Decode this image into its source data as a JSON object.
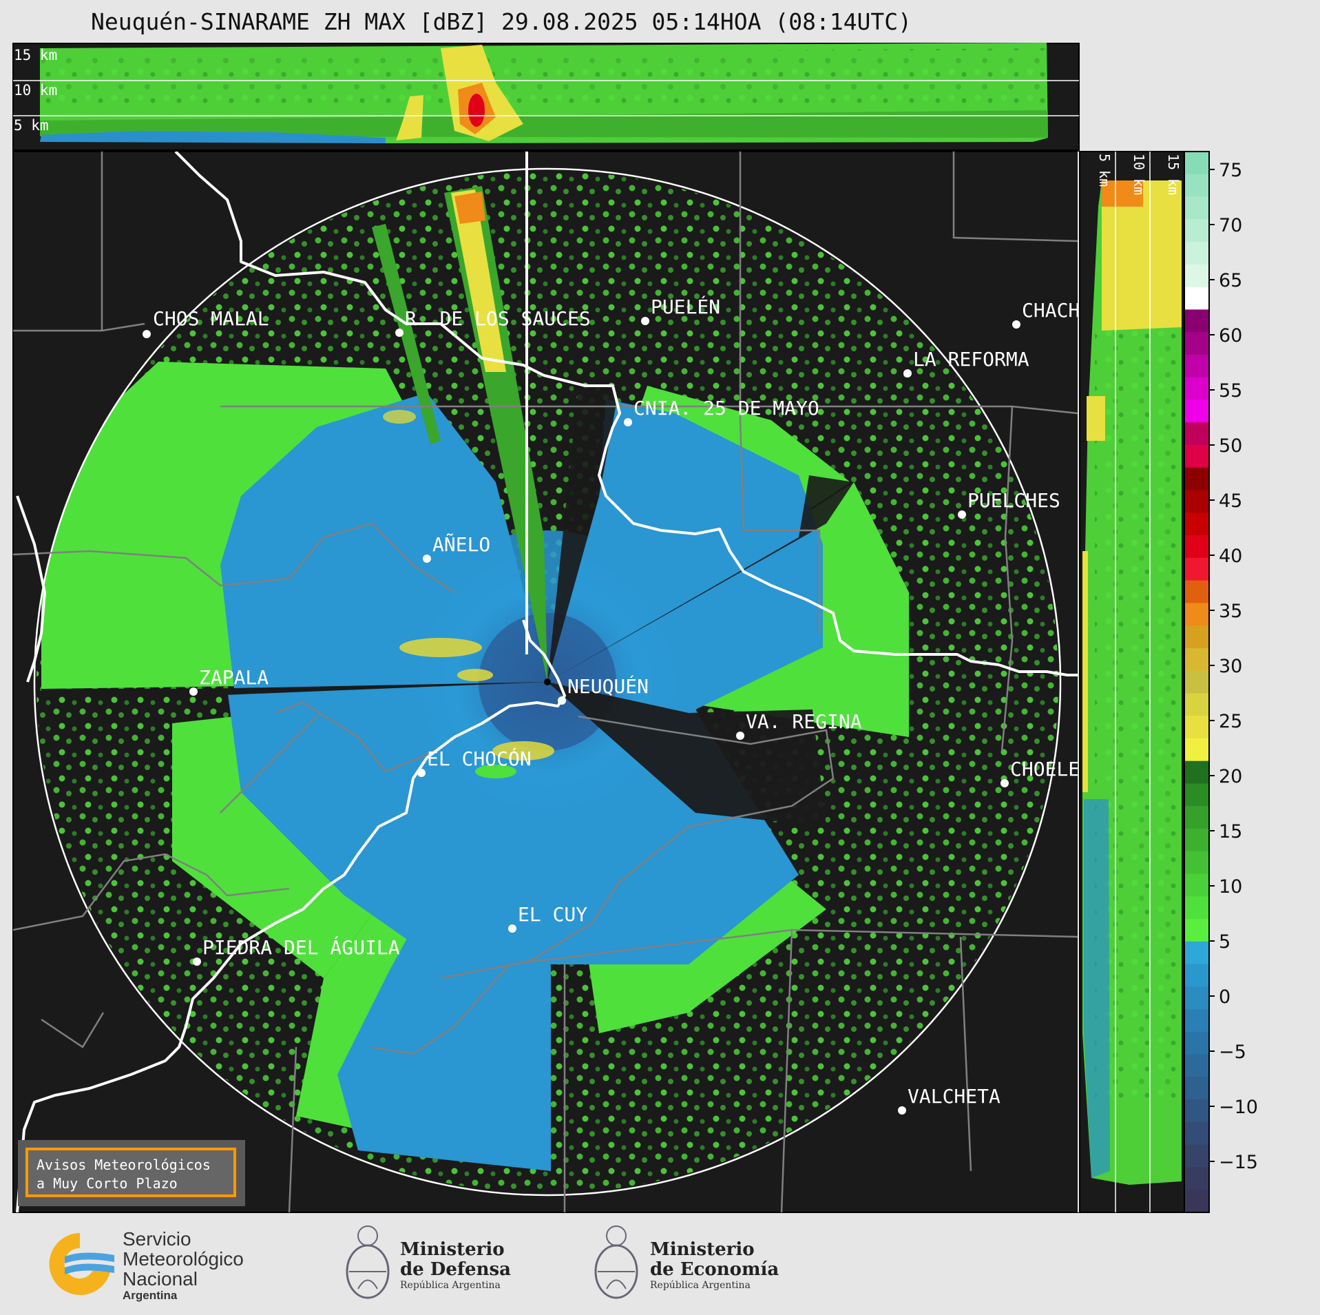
{
  "title": "Neuquén-SINARAME ZH MAX [dBZ] 29.08.2025 05:14HOA (08:14UTC)",
  "top_profile": {
    "height_labels": [
      "15 km",
      "10 km",
      "5 km"
    ]
  },
  "side_profile": {
    "height_labels": [
      "5 km",
      "10 km",
      "15 km"
    ]
  },
  "colorbar": {
    "unit": "dBZ",
    "ticks": [
      "75",
      "70",
      "65",
      "60",
      "55",
      "50",
      "45",
      "40",
      "35",
      "30",
      "25",
      "20",
      "15",
      "10",
      "5",
      "0",
      "−5",
      "−10",
      "−15"
    ],
    "colors": [
      "#86dcb6",
      "#97e2c0",
      "#a8e8c9",
      "#b9edd3",
      "#cbf2dc",
      "#dcf7e6",
      "#ffffff",
      "#8a0070",
      "#a4008a",
      "#c000a8",
      "#dd00cc",
      "#f000e8",
      "#c0005a",
      "#e00048",
      "#8c0000",
      "#aa0000",
      "#c80000",
      "#e00018",
      "#f01830",
      "#e06010",
      "#f08a18",
      "#d8a020",
      "#d8b830",
      "#c8c040",
      "#d8d440",
      "#e8e040",
      "#f0f040",
      "#207020",
      "#2a8c22",
      "#35a02a",
      "#3db030",
      "#44c034",
      "#4ad038",
      "#4fe03c",
      "#5aef3e",
      "#2ea8d8",
      "#2a98cc",
      "#2a8cc0",
      "#2a80b4",
      "#2a74a8",
      "#2c6a9c",
      "#2e6090",
      "#305684",
      "#334c78",
      "#36446c",
      "#383c60",
      "#3a3658"
    ]
  },
  "cities": [
    {
      "name": "CHOS MALAL"
    },
    {
      "name": "R. DE LOS SAUCES"
    },
    {
      "name": "PUELÉN"
    },
    {
      "name": "CHACH"
    },
    {
      "name": "LA REFORMA"
    },
    {
      "name": "CNIA. 25 DE MAYO"
    },
    {
      "name": "PUELCHES"
    },
    {
      "name": "AÑELO"
    },
    {
      "name": "ZAPALA"
    },
    {
      "name": "NEUQUÉN"
    },
    {
      "name": "VA. REGINA"
    },
    {
      "name": "EL CHOCÓN"
    },
    {
      "name": "CHOELE"
    },
    {
      "name": "EL CUY"
    },
    {
      "name": "PIEDRA DEL ÁGUILA"
    },
    {
      "name": "VALCHETA"
    }
  ],
  "warning": {
    "line1": "Avisos Meteorológicos",
    "line2": "a Muy Corto Plazo"
  },
  "logos": {
    "smn": {
      "line1": "Servicio",
      "line2": "Meteorológico",
      "line3": "Nacional",
      "line4": "Argentina"
    },
    "defensa": {
      "line1": "Ministerio",
      "line2": "de Defensa",
      "line3": "República Argentina"
    },
    "economia": {
      "line1": "Ministerio",
      "line2": "de Economía",
      "line3": "República Argentina"
    }
  },
  "colors": {
    "background": "#1a1a1a",
    "rain_blue": "#2a90cc",
    "rain_green": "#4fe03c",
    "border_white": "#ffffff",
    "accent_orange": "#ff9900"
  }
}
